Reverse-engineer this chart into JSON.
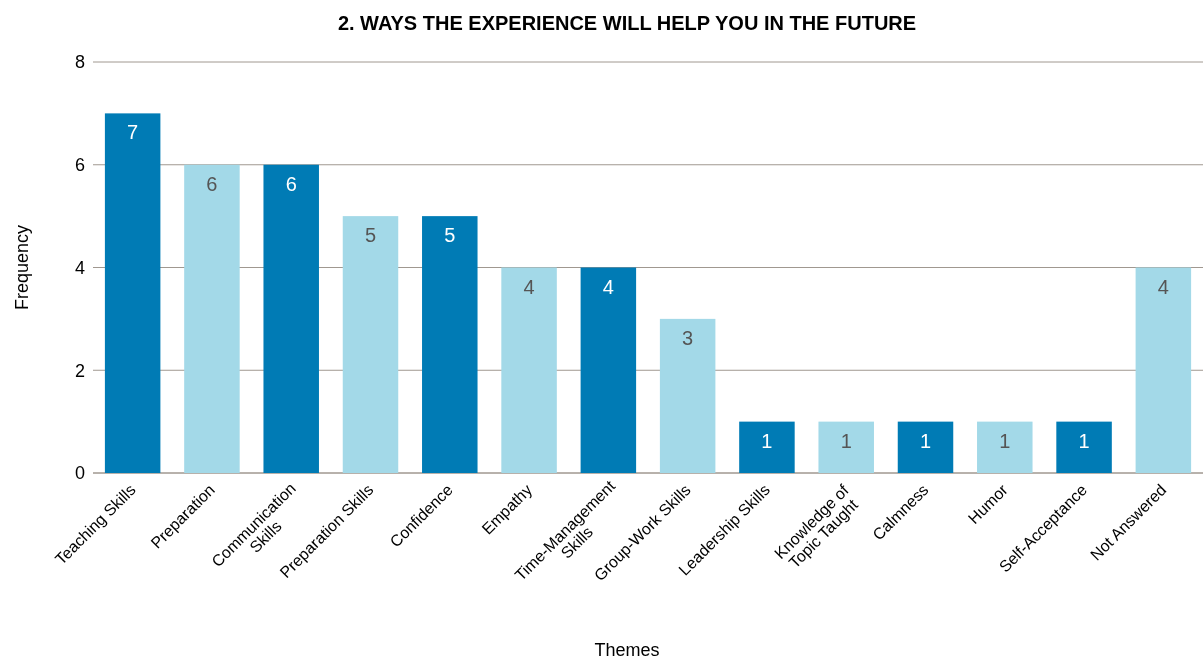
{
  "chart_data": {
    "type": "bar",
    "title": "2. WAYS THE EXPERIENCE WILL HELP YOU IN THE FUTURE",
    "xlabel": "Themes",
    "ylabel": "Frequency",
    "categories": [
      "Teaching Skills",
      "Preparation",
      "Communication\nSkills",
      "Preparation Skills",
      "Confidence",
      "Empathy",
      "Time-Management\nSkills",
      "Group-Work Skills",
      "Leadership Skills",
      "Knowledge of\nTopic Taught",
      "Calmness",
      "Humor",
      "Self-Acceptance",
      "Not Answered"
    ],
    "values": [
      7,
      6,
      6,
      5,
      5,
      4,
      4,
      3,
      1,
      1,
      1,
      1,
      1,
      4
    ],
    "colors": [
      "#007bb5",
      "#a3d9e8",
      "#007bb5",
      "#a3d9e8",
      "#007bb5",
      "#a3d9e8",
      "#007bb5",
      "#a3d9e8",
      "#007bb5",
      "#a3d9e8",
      "#007bb5",
      "#a3d9e8",
      "#007bb5",
      "#a3d9e8"
    ],
    "ylim": [
      0,
      8
    ],
    "yticks": [
      0,
      2,
      4,
      6,
      8
    ],
    "grid": "y",
    "data_labels": true
  }
}
